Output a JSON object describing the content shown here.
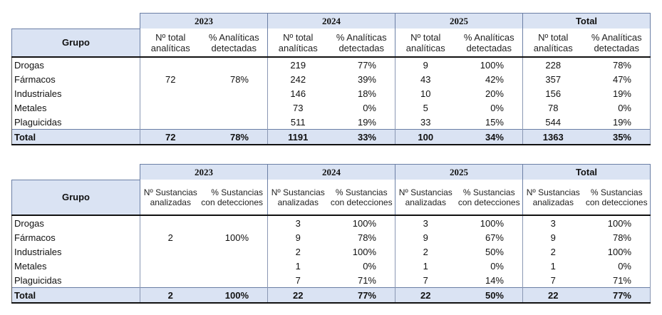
{
  "years": [
    "2023",
    "2024",
    "2025",
    "Total"
  ],
  "group_header": "Grupo",
  "groups": [
    "Drogas",
    "Fármacos",
    "Industriales",
    "Metales",
    "Plaguicidas"
  ],
  "total_label": "Total",
  "table1": {
    "col_n": "Nº total analíticas",
    "col_p": "% Analíticas detectadas",
    "rows": [
      [
        "",
        "",
        "219",
        "77%",
        "9",
        "100%",
        "228",
        "78%"
      ],
      [
        "72",
        "78%",
        "242",
        "39%",
        "43",
        "42%",
        "357",
        "47%"
      ],
      [
        "",
        "",
        "146",
        "18%",
        "10",
        "20%",
        "156",
        "19%"
      ],
      [
        "",
        "",
        "73",
        "0%",
        "5",
        "0%",
        "78",
        "0%"
      ],
      [
        "",
        "",
        "511",
        "19%",
        "33",
        "15%",
        "544",
        "19%"
      ]
    ],
    "total": [
      "72",
      "78%",
      "1191",
      "33%",
      "100",
      "34%",
      "1363",
      "35%"
    ]
  },
  "table2": {
    "col_n_2023": "Nº Sustancias analizadas",
    "col_n": "Nº Sustancias analizadas",
    "col_p": "% Sustancias con detecciones",
    "rows": [
      [
        "",
        "",
        "3",
        "100%",
        "3",
        "100%",
        "3",
        "100%"
      ],
      [
        "2",
        "100%",
        "9",
        "78%",
        "9",
        "67%",
        "9",
        "78%"
      ],
      [
        "",
        "",
        "2",
        "100%",
        "2",
        "50%",
        "2",
        "100%"
      ],
      [
        "",
        "",
        "1",
        "0%",
        "1",
        "0%",
        "1",
        "0%"
      ],
      [
        "",
        "",
        "7",
        "71%",
        "7",
        "14%",
        "7",
        "71%"
      ]
    ],
    "total": [
      "2",
      "100%",
      "22",
      "77%",
      "22",
      "50%",
      "22",
      "77%"
    ]
  }
}
